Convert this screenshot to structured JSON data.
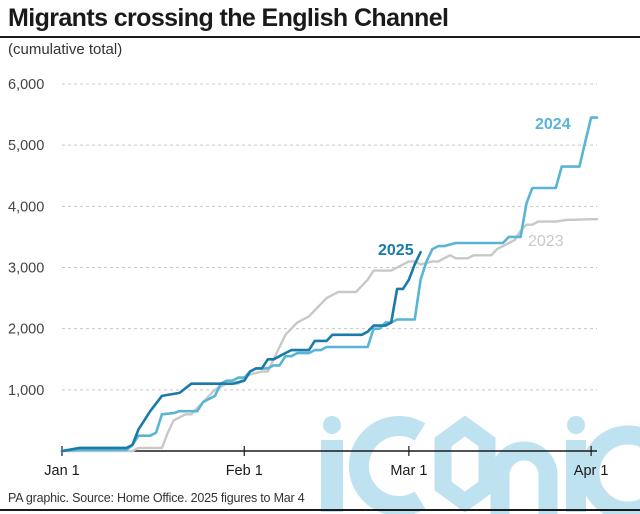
{
  "header": {
    "title": "Migrants crossing the English Channel",
    "subtitle": "(cumulative total)"
  },
  "footer": {
    "source": "PA graphic. Source: Home Office. 2025 figures to Mar 4"
  },
  "watermark": {
    "text": "iconic",
    "color": "#bfe2f0"
  },
  "colors": {
    "s2023": "#c8c8c8",
    "s2024": "#5ab4d6",
    "s2025": "#1a7aa8",
    "grid": "#c8c8c8",
    "axis": "#1a1a1a"
  },
  "chart_data": {
    "type": "line",
    "title": "Migrants crossing the English Channel",
    "subtitle": "(cumulative total)",
    "xlabel": "",
    "ylabel": "",
    "x_unit": "day of year (Jan 1 = 0)",
    "xlim": [
      0,
      91
    ],
    "ylim": [
      0,
      6000
    ],
    "grid": true,
    "yticks": [
      {
        "value": 1000,
        "label": "1,000"
      },
      {
        "value": 2000,
        "label": "2,000"
      },
      {
        "value": 3000,
        "label": "3,000"
      },
      {
        "value": 4000,
        "label": "4,000"
      },
      {
        "value": 5000,
        "label": "5,000"
      },
      {
        "value": 6000,
        "label": "6,000"
      }
    ],
    "xticks": [
      {
        "value": 0,
        "label": "Jan 1"
      },
      {
        "value": 31,
        "label": "Feb 1"
      },
      {
        "value": 59,
        "label": "Mar 1"
      },
      {
        "value": 90,
        "label": "Apr 1"
      }
    ],
    "series": [
      {
        "name": "2023",
        "label": "2023",
        "x": [
          0,
          5,
          9,
          12,
          13,
          17,
          18,
          19,
          21,
          22,
          23,
          24,
          25,
          26,
          27,
          28,
          30,
          31,
          32,
          34,
          35,
          36,
          37,
          38,
          39,
          40,
          41,
          42,
          43,
          44,
          45,
          46,
          47,
          49,
          50,
          51,
          52,
          53,
          54,
          56,
          58,
          59,
          60,
          61,
          63,
          64,
          65,
          66,
          67,
          68,
          69,
          70,
          71,
          72,
          73,
          74,
          75,
          77,
          78,
          79,
          80,
          81,
          82,
          83,
          84,
          86,
          87,
          90,
          91
        ],
        "values": [
          0,
          0,
          0,
          0,
          50,
          50,
          300,
          500,
          600,
          600,
          700,
          800,
          900,
          1000,
          1050,
          1100,
          1100,
          1200,
          1250,
          1300,
          1300,
          1500,
          1700,
          1900,
          2000,
          2100,
          2150,
          2200,
          2300,
          2400,
          2500,
          2550,
          2600,
          2600,
          2600,
          2700,
          2800,
          2950,
          2950,
          2950,
          3050,
          3100,
          3100,
          3050,
          3100,
          3100,
          3150,
          3200,
          3150,
          3150,
          3150,
          3200,
          3200,
          3200,
          3200,
          3300,
          3350,
          3450,
          3600,
          3700,
          3700,
          3750,
          3750,
          3750,
          3750,
          3780,
          3780,
          3790,
          3790
        ]
      },
      {
        "name": "2024",
        "label": "2024",
        "x": [
          0,
          3,
          5,
          6,
          11,
          12,
          13,
          14,
          15,
          16,
          17,
          19,
          20,
          22,
          23,
          24,
          25,
          26,
          27,
          28,
          29,
          30,
          31,
          32,
          33,
          34,
          35,
          36,
          37,
          38,
          39,
          40,
          41,
          42,
          43,
          44,
          45,
          47,
          48,
          49,
          50,
          51,
          52,
          53,
          54,
          55,
          56,
          57,
          58,
          59,
          60,
          61,
          62,
          63,
          64,
          65,
          67,
          68,
          69,
          70,
          71,
          72,
          73,
          74,
          75,
          76,
          78,
          79,
          80,
          81,
          82,
          83,
          84,
          85,
          86,
          87,
          88,
          89,
          90,
          91
        ],
        "values": [
          0,
          20,
          20,
          20,
          20,
          100,
          250,
          250,
          250,
          300,
          600,
          620,
          650,
          650,
          650,
          800,
          850,
          900,
          1100,
          1150,
          1150,
          1200,
          1200,
          1300,
          1350,
          1350,
          1350,
          1400,
          1400,
          1550,
          1550,
          1600,
          1600,
          1600,
          1650,
          1650,
          1700,
          1700,
          1700,
          1700,
          1700,
          1700,
          1700,
          2000,
          2000,
          2100,
          2100,
          2150,
          2150,
          2150,
          2150,
          2800,
          3100,
          3300,
          3350,
          3350,
          3400,
          3400,
          3400,
          3400,
          3400,
          3400,
          3400,
          3400,
          3400,
          3500,
          3500,
          4050,
          4300,
          4300,
          4300,
          4300,
          4300,
          4650,
          4650,
          4650,
          4650,
          5050,
          5450,
          5450
        ]
      },
      {
        "name": "2025",
        "label": "2025",
        "x": [
          0,
          3,
          4,
          5,
          6,
          7,
          8,
          9,
          10,
          11,
          12,
          13,
          14,
          15,
          17,
          20,
          22,
          24,
          25,
          27,
          28,
          29,
          31,
          32,
          33,
          34,
          35,
          36,
          37,
          38,
          39,
          40,
          41,
          42,
          43,
          44,
          45,
          46,
          47,
          48,
          49,
          50,
          51,
          52,
          53,
          54,
          55,
          56,
          57,
          58,
          59,
          60,
          61
        ],
        "values": [
          0,
          50,
          50,
          50,
          50,
          50,
          50,
          50,
          50,
          50,
          100,
          350,
          500,
          650,
          900,
          950,
          1100,
          1100,
          1100,
          1100,
          1100,
          1100,
          1150,
          1300,
          1350,
          1350,
          1500,
          1500,
          1550,
          1600,
          1650,
          1650,
          1650,
          1650,
          1800,
          1800,
          1800,
          1900,
          1900,
          1900,
          1900,
          1900,
          1900,
          1950,
          2050,
          2050,
          2050,
          2100,
          2650,
          2650,
          2800,
          3050,
          3250
        ]
      }
    ]
  }
}
